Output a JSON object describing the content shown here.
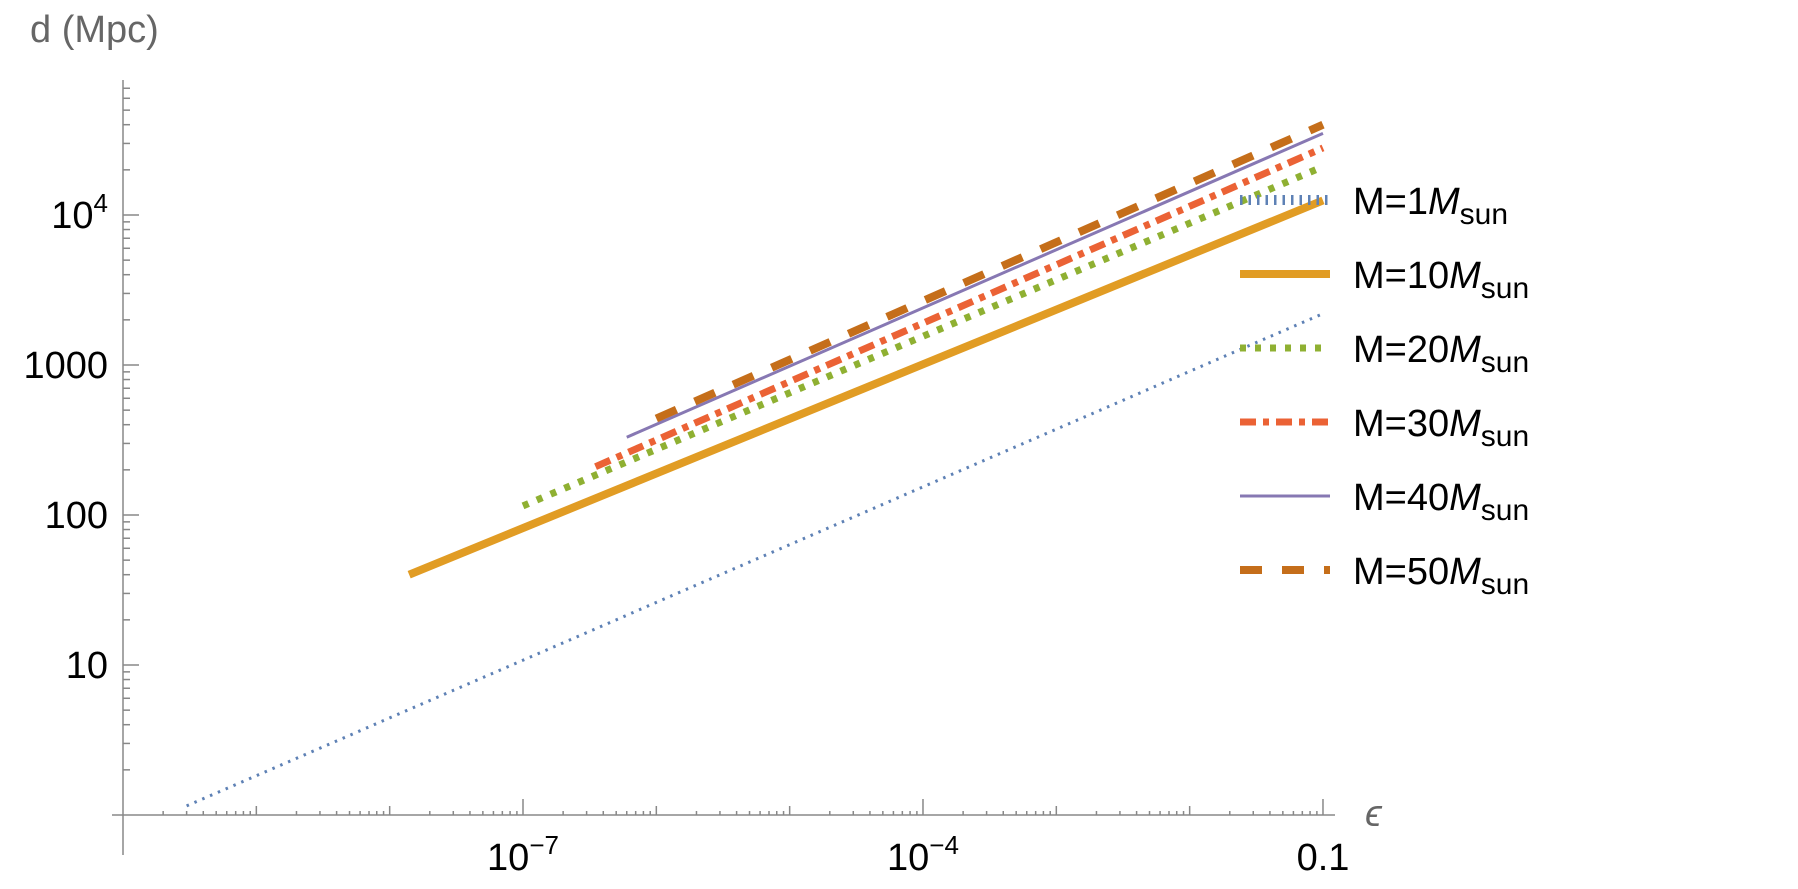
{
  "chart_data": {
    "type": "line",
    "xscale": "log",
    "yscale": "log",
    "xlabel": "ϵ",
    "ylabel": "d (Mpc)",
    "xlim": [
      1e-10,
      0.3
    ],
    "ylim": [
      0.4,
      120000
    ],
    "x_ticks": [
      {
        "value": 1e-07,
        "base": "10",
        "exp": "−7"
      },
      {
        "value": 0.0001,
        "base": "10",
        "exp": "−4"
      },
      {
        "value": 0.1,
        "base": "0.1",
        "exp": ""
      }
    ],
    "y_ticks": [
      {
        "value": 10,
        "base": "10",
        "exp": ""
      },
      {
        "value": 100,
        "base": "100",
        "exp": ""
      },
      {
        "value": 1000,
        "base": "1000",
        "exp": ""
      },
      {
        "value": 10000,
        "base": "10",
        "exp": "4"
      }
    ],
    "grid": false,
    "legend_position": "right",
    "series": [
      {
        "name_prefix": "M=1",
        "name_italic": "M",
        "name_sub": "sun",
        "color": "#5e81b5",
        "style": "dotted",
        "width": 3.5,
        "x": [
          3e-10,
          0.1
        ],
        "y": [
          1.15,
          2200
        ]
      },
      {
        "name_prefix": "M=10",
        "name_italic": "M",
        "name_sub": "sun",
        "color": "#e19c24",
        "style": "solid",
        "width": 8,
        "x": [
          1.4e-08,
          0.1
        ],
        "y": [
          40,
          12500
        ]
      },
      {
        "name_prefix": "M=20",
        "name_italic": "M",
        "name_sub": "sun",
        "color": "#8fb032",
        "style": "dotted-thick",
        "width": 7,
        "x": [
          1e-07,
          0.1
        ],
        "y": [
          115,
          21000
        ]
      },
      {
        "name_prefix": "M=30",
        "name_italic": "M",
        "name_sub": "sun",
        "color": "#eb6235",
        "style": "dashdot",
        "width": 7,
        "x": [
          3.5e-07,
          0.1
        ],
        "y": [
          210,
          28000
        ]
      },
      {
        "name_prefix": "M=40",
        "name_italic": "M",
        "name_sub": "sun",
        "color": "#8778b3",
        "style": "solid",
        "width": 3,
        "x": [
          6e-07,
          0.1
        ],
        "y": [
          330,
          35000
        ]
      },
      {
        "name_prefix": "M=50",
        "name_italic": "M",
        "name_sub": "sun",
        "color": "#c56e1a",
        "style": "dashed",
        "width": 8,
        "x": [
          1e-06,
          0.1
        ],
        "y": [
          440,
          40000
        ]
      }
    ]
  }
}
